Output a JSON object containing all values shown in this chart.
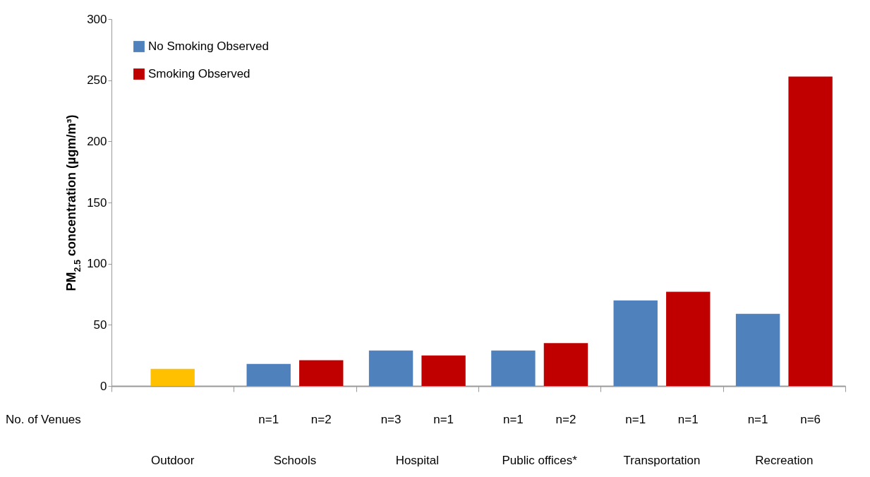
{
  "chart_data": {
    "type": "bar",
    "ylabel": "PM$_{2.5}$ concentration (µgm/m³)",
    "categories": [
      "Outdoor",
      "Schools",
      "Hospital",
      "Public offices*",
      "Transportation",
      "Recreation"
    ],
    "series": [
      {
        "color": "#ffc000",
        "values": [
          14,
          null,
          null,
          null,
          null,
          null
        ]
      },
      {
        "name": "No Smoking Observed",
        "color": "#4f81bd",
        "values": [
          null,
          18,
          29,
          29,
          70,
          59
        ]
      },
      {
        "name": "Smoking Observed",
        "color": "#c00000",
        "values": [
          null,
          21,
          25,
          35,
          77,
          253
        ]
      }
    ],
    "ylim": [
      0,
      300
    ],
    "yticks": [
      0,
      50,
      100,
      150,
      200,
      250,
      300
    ],
    "legend": "top left",
    "annotations": [
      "No. of Venues",
      "n=1",
      "n=2",
      "n=3",
      "n=1",
      "n=1",
      "n=2",
      "n=1",
      "n=1",
      "n=1",
      "n=6"
    ]
  }
}
